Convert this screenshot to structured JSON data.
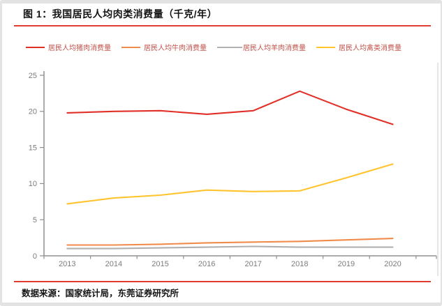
{
  "page": {
    "title": "图 1：我国居民人均肉类消费量（千克/年）",
    "source_note": "数据来源：国家统计局，东莞证券研究所"
  },
  "colors": {
    "rule_red": "#e03c32",
    "axis_line": "#8f8f8f",
    "tick_label": "#7c7c7c",
    "legend_text": "#c05249",
    "plot_right_border": "#d9d9d9",
    "frame_gray": "#e3e3e3"
  },
  "chart_data": {
    "type": "line",
    "title": "我国居民人均肉类消费量（千克/年）",
    "x": [
      "2013",
      "2014",
      "2015",
      "2016",
      "2017",
      "2018",
      "2019",
      "2020"
    ],
    "xlabel": "",
    "ylabel": "",
    "ylim": [
      0,
      25
    ],
    "ytick_interval": 5,
    "yticks": [
      0,
      5,
      10,
      15,
      20,
      25
    ],
    "grid": false,
    "legend_position": "top",
    "series": [
      {
        "key": "pork",
        "name": "居民人均猪肉消费量",
        "color": "#e03028",
        "values": [
          19.8,
          20.0,
          20.1,
          19.6,
          20.1,
          22.8,
          20.3,
          18.2
        ]
      },
      {
        "key": "beef",
        "name": "居民人均牛肉消费量",
        "color": "#f08c4b",
        "values": [
          1.5,
          1.5,
          1.6,
          1.8,
          1.9,
          2.0,
          2.2,
          2.4
        ]
      },
      {
        "key": "mutton",
        "name": "居民人均羊肉消费量",
        "color": "#b0b0b0",
        "values": [
          1.0,
          1.0,
          1.1,
          1.2,
          1.3,
          1.2,
          1.2,
          1.2
        ]
      },
      {
        "key": "poultry",
        "name": "居民人均禽类消费量",
        "color": "#ffc42e",
        "values": [
          7.2,
          8.0,
          8.4,
          9.1,
          8.9,
          9.0,
          10.8,
          12.7
        ]
      }
    ]
  }
}
